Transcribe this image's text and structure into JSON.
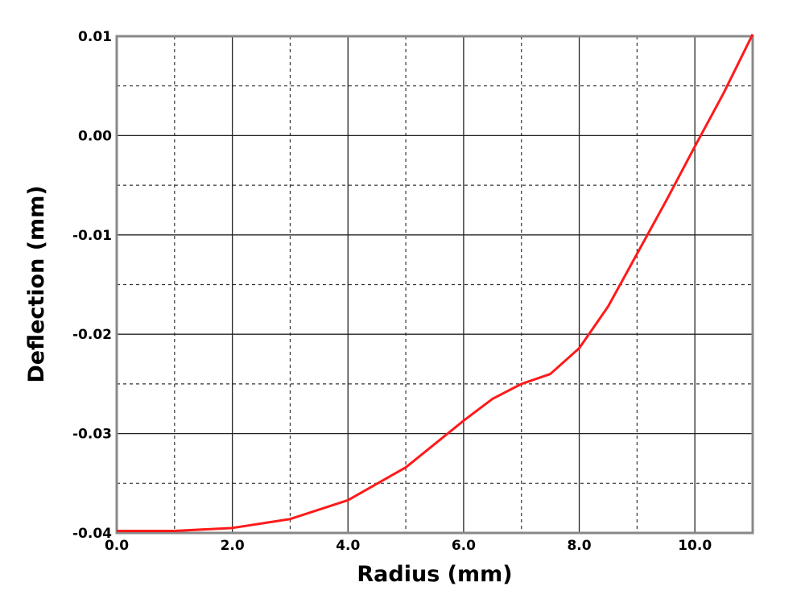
{
  "chart_data": {
    "type": "line",
    "x_label": "Radius (mm)",
    "y_label": "Deflection (mm)",
    "x": [
      0,
      1,
      2,
      3,
      4,
      5,
      6,
      6.5,
      7,
      7.5,
      8,
      8.5,
      9,
      9.5,
      10,
      10.5,
      11
    ],
    "series": [
      {
        "color": "#ff1a1a",
        "values": [
          -0.0398,
          -0.0398,
          -0.0395,
          -0.0386,
          -0.0367,
          -0.0334,
          -0.0287,
          -0.0265,
          -0.025,
          -0.024,
          -0.0214,
          -0.0172,
          -0.0119,
          -0.0066,
          -0.0011,
          0.0043,
          0.0102
        ]
      }
    ],
    "xlim": [
      0,
      11
    ],
    "ylim": [
      -0.04,
      0.01
    ],
    "xticks": [
      {
        "value": 0,
        "label": "0.0"
      },
      {
        "value": 2,
        "label": "2.0"
      },
      {
        "value": 4,
        "label": "4.0"
      },
      {
        "value": 6,
        "label": "6.0"
      },
      {
        "value": 8,
        "label": "8.0"
      },
      {
        "value": 10,
        "label": "10.0"
      }
    ],
    "yticks": [
      -0.04,
      -0.03,
      -0.02,
      -0.01,
      {
        "value": 0,
        "label": "0.00"
      },
      0.01
    ],
    "xminorticks": [
      1,
      3,
      5,
      7,
      9
    ],
    "yminorticks": [
      -0.035,
      -0.025,
      -0.015,
      -0.005,
      0.005
    ],
    "grid": true
  }
}
